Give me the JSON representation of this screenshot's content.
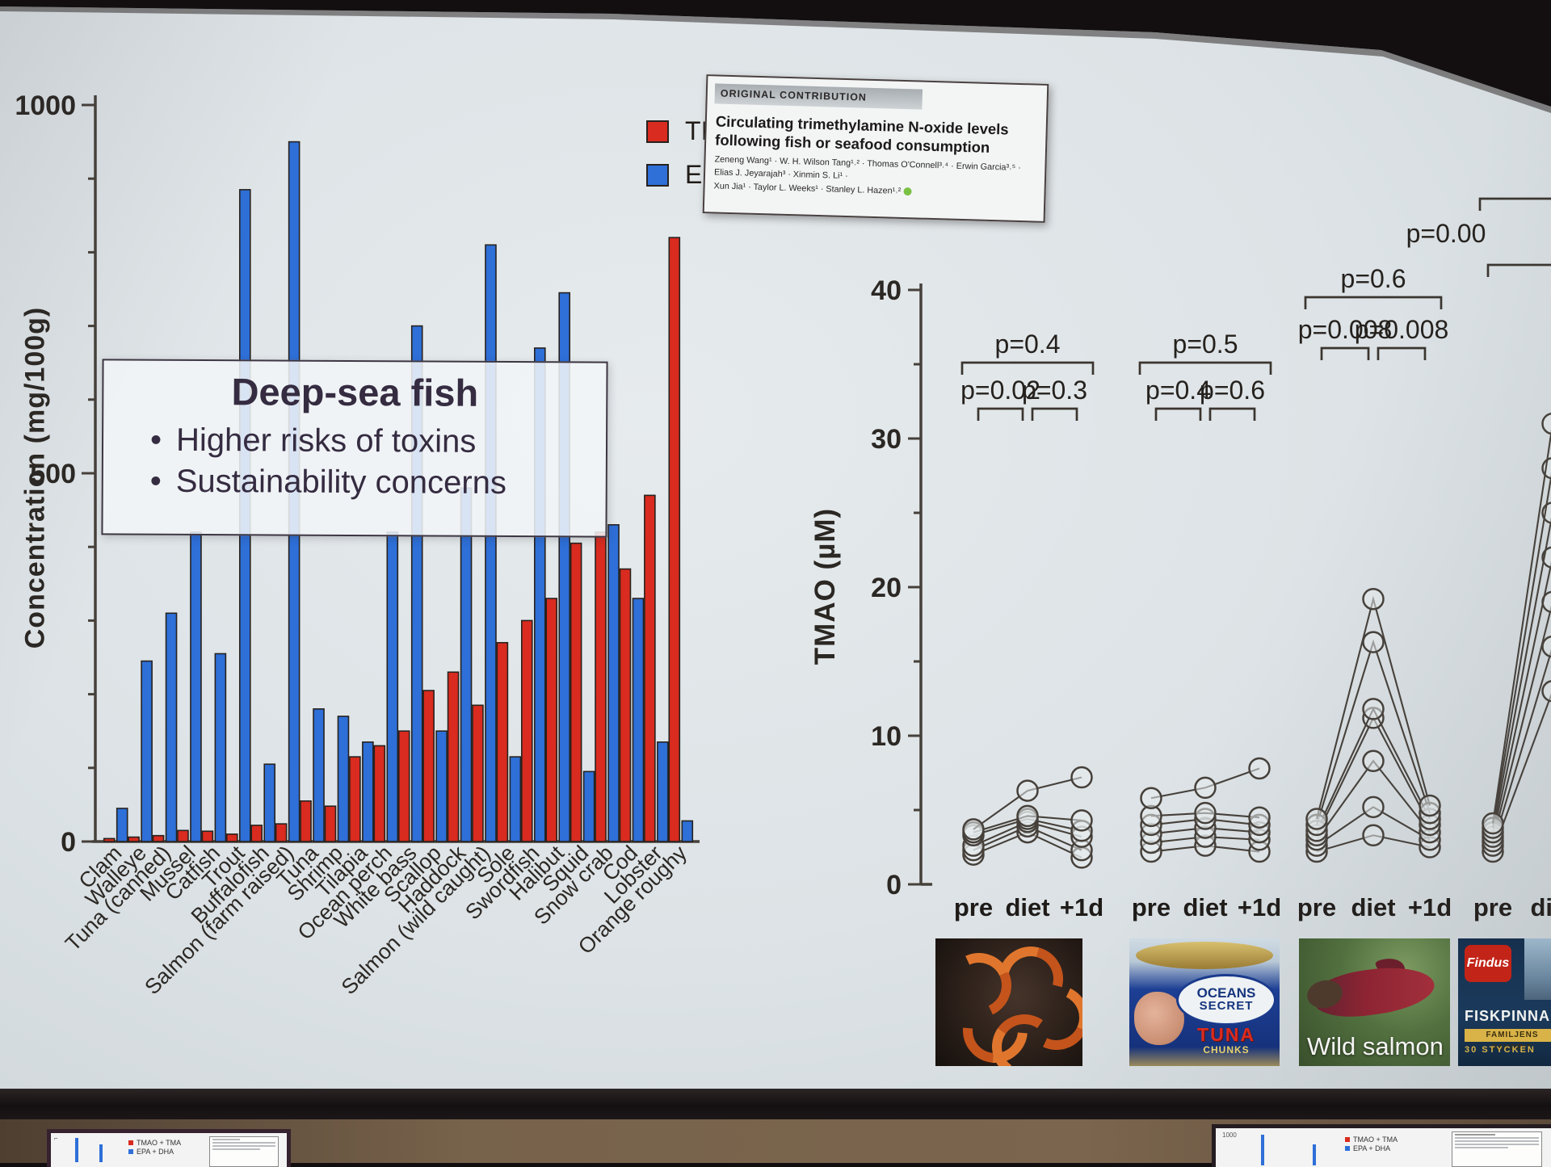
{
  "slide": {
    "legend": {
      "series": [
        {
          "label": "TMAO + TMA",
          "color": "#d92b1f"
        },
        {
          "label": "EPA + DHA",
          "color": "#2e6fd8"
        }
      ]
    },
    "callout": {
      "title": "Deep-sea fish",
      "bullets": [
        "Higher risks of toxins",
        "Sustainability concerns"
      ]
    },
    "paper": {
      "tag": "ORIGINAL CONTRIBUTION",
      "title": "Circulating trimethylamine N-oxide levels following fish or seafood consumption",
      "authors_line1": "Zeneng Wang¹ · W. H. Wilson Tang¹˒² · Thomas O'Connell³˒⁴ · Erwin Garcia³˒⁵ · Elias J. Jeyarajah³ · Xinmin S. Li¹ ·",
      "authors_line2": "Xun Jia¹ · Taylor L. Weeks¹ · Stanley L. Hazen¹˒²",
      "orcid_color": "#7ac143"
    }
  },
  "chart_data": [
    {
      "type": "bar",
      "title": "",
      "xlabel": "",
      "ylabel": "Concentration (mg/100g)",
      "ylim": [
        0,
        1000
      ],
      "yticks": [
        0,
        500,
        1000
      ],
      "minor_tick_step": 100,
      "grid": false,
      "legend_position": "top-right",
      "categories": [
        "Clam",
        "Walleye",
        "Tuna (canned)",
        "Mussel",
        "Catfish",
        "Trout",
        "Buffalofish",
        "Salmon (farm raised)",
        "Tuna",
        "Shrimp",
        "Tilapia",
        "Ocean perch",
        "White bass",
        "Scallop",
        "Haddock",
        "Salmon (wild caught)",
        "Sole",
        "Swordfish",
        "Halibut",
        "Squid",
        "Snow crab",
        "Cod",
        "Lobster",
        "Orange roughy"
      ],
      "series": [
        {
          "name": "TMAO + TMA",
          "color": "#d92b1f",
          "values": [
            4,
            6,
            8,
            15,
            14,
            10,
            22,
            24,
            55,
            48,
            115,
            130,
            150,
            205,
            230,
            185,
            270,
            300,
            330,
            405,
            420,
            370,
            470,
            820
          ]
        },
        {
          "name": "EPA + DHA",
          "color": "#2e6fd8",
          "values": [
            45,
            245,
            310,
            420,
            255,
            885,
            105,
            950,
            180,
            170,
            135,
            420,
            700,
            150,
            480,
            810,
            115,
            670,
            745,
            95,
            430,
            330,
            135,
            28
          ]
        }
      ]
    },
    {
      "type": "line",
      "subtype": "paired-individual-subjects",
      "ylabel": "TMAO (µM)",
      "ylim": [
        0,
        40
      ],
      "yticks": [
        0,
        10,
        20,
        30,
        40
      ],
      "minor_tick_step": 5,
      "timepoints": [
        "pre",
        "diet",
        "+1d"
      ],
      "groups": [
        {
          "food": "shrimp",
          "subjects": [
            [
              2.0,
              3.5,
              1.8
            ],
            [
              2.3,
              3.9,
              2.3
            ],
            [
              2.6,
              4.2,
              3.2
            ],
            [
              3.3,
              4.4,
              3.6
            ],
            [
              3.5,
              4.6,
              4.3
            ],
            [
              3.7,
              6.3,
              7.2
            ]
          ],
          "pvalues": {
            "pre_vs_diet": "p=0.02",
            "diet_vs_plus1d": "p=0.3",
            "pre_vs_plus1d": "p=0.4"
          }
        },
        {
          "food": "canned tuna",
          "subjects": [
            [
              2.2,
              2.6,
              2.2
            ],
            [
              2.8,
              3.2,
              3.0
            ],
            [
              3.4,
              3.8,
              3.5
            ],
            [
              4.0,
              4.4,
              4.0
            ],
            [
              4.6,
              4.8,
              4.5
            ],
            [
              5.8,
              6.5,
              7.8
            ]
          ],
          "pvalues": {
            "pre_vs_diet": "p=0.4",
            "diet_vs_plus1d": "p=0.6",
            "pre_vs_plus1d": "p=0.5"
          }
        },
        {
          "food": "wild salmon",
          "subjects": [
            [
              2.2,
              3.3,
              2.5
            ],
            [
              2.6,
              5.2,
              3.0
            ],
            [
              3.0,
              8.3,
              3.5
            ],
            [
              3.3,
              11.2,
              4.0
            ],
            [
              3.6,
              11.8,
              4.4
            ],
            [
              4.0,
              16.3,
              4.8
            ],
            [
              4.4,
              19.2,
              5.3
            ]
          ],
          "pvalues": {
            "pre_vs_diet": "p=0.008",
            "diet_vs_plus1d": "p=0.008",
            "pre_vs_plus1d": "p=0.6"
          }
        },
        {
          "food": "fish sticks",
          "subjects": [
            [
              2.2,
              13.0
            ],
            [
              2.6,
              16.0
            ],
            [
              2.9,
              19.0
            ],
            [
              3.2,
              22.0
            ],
            [
              3.5,
              25.0
            ],
            [
              3.8,
              28.0
            ],
            [
              4.1,
              31.0
            ]
          ],
          "clipped_at_right_edge": true,
          "pvalues": {
            "pre_vs_diet": "p=0.00",
            "pre_vs_plus1d": ""
          }
        }
      ]
    }
  ],
  "food_images": [
    {
      "name": "cooked-shrimp-photo",
      "caption": ""
    },
    {
      "name": "canned-tuna-photo",
      "brand_line1": "OCEANS",
      "brand_line2": "SECRET",
      "product": "TUNA",
      "sub": "CHUNKS"
    },
    {
      "name": "wild-salmon-photo",
      "caption": "Wild salmon"
    },
    {
      "name": "fish-sticks-box-photo",
      "brand": "Findus",
      "product": "FISKPINNAR",
      "band": "FAMILJENS FAVORIT",
      "sub": "30 STYCKEN"
    }
  ],
  "monitors": {
    "left": {
      "legend": [
        "TMAO + TMA",
        "EPA + DHA"
      ]
    },
    "right": {
      "axis_label": "1000",
      "legend": [
        "TMAO + TMA",
        "EPA + DHA"
      ]
    }
  }
}
